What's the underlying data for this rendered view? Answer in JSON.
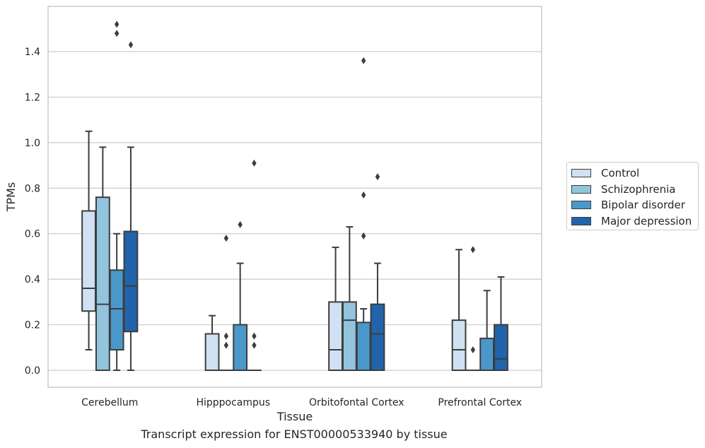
{
  "caption": "Transcript expression for ENST00000533940 by tissue",
  "chart_data": {
    "type": "box",
    "xlabel": "Tissue",
    "ylabel": "TPMs",
    "ylim": [
      -0.075,
      1.6
    ],
    "yticks": [
      "0.0",
      "0.2",
      "0.4",
      "0.6",
      "0.8",
      "1.0",
      "1.2",
      "1.4"
    ],
    "grid": true,
    "legend_position": "right",
    "categories": [
      "Cerebellum",
      "Hipppocampus",
      "Orbitofontal Cortex",
      "Prefrontal Cortex"
    ],
    "series": [
      {
        "name": "Control",
        "color": "#cfe1f2",
        "boxes": [
          {
            "low": 0.09,
            "q1": 0.26,
            "median": 0.36,
            "q3": 0.7,
            "high": 1.05,
            "outliers": []
          },
          {
            "low": 0.0,
            "q1": 0.0,
            "median": 0.0,
            "q3": 0.16,
            "high": 0.24,
            "outliers": []
          },
          {
            "low": 0.0,
            "q1": 0.0,
            "median": 0.09,
            "q3": 0.3,
            "high": 0.54,
            "outliers": []
          },
          {
            "low": 0.0,
            "q1": 0.0,
            "median": 0.09,
            "q3": 0.22,
            "high": 0.53,
            "outliers": []
          }
        ]
      },
      {
        "name": "Schizophrenia",
        "color": "#93c4de",
        "boxes": [
          {
            "low": 0.0,
            "q1": 0.0,
            "median": 0.29,
            "q3": 0.76,
            "high": 0.98,
            "outliers": []
          },
          {
            "low": 0.0,
            "q1": 0.0,
            "median": 0.0,
            "q3": 0.0,
            "high": 0.0,
            "outliers": [
              0.11,
              0.15,
              0.58
            ]
          },
          {
            "low": 0.0,
            "q1": 0.0,
            "median": 0.22,
            "q3": 0.3,
            "high": 0.63,
            "outliers": []
          },
          {
            "low": 0.0,
            "q1": 0.0,
            "median": 0.0,
            "q3": 0.0,
            "high": 0.0,
            "outliers": [
              0.09,
              0.53
            ]
          }
        ]
      },
      {
        "name": "Bipolar disorder",
        "color": "#4a98c9",
        "boxes": [
          {
            "low": 0.0,
            "q1": 0.09,
            "median": 0.27,
            "q3": 0.44,
            "high": 0.6,
            "outliers": [
              1.48,
              1.52
            ]
          },
          {
            "low": 0.0,
            "q1": 0.0,
            "median": 0.0,
            "q3": 0.2,
            "high": 0.47,
            "outliers": [
              0.64
            ]
          },
          {
            "low": 0.0,
            "q1": 0.0,
            "median": 0.0,
            "q3": 0.21,
            "high": 0.27,
            "outliers": [
              0.59,
              0.77,
              1.36
            ]
          },
          {
            "low": 0.0,
            "q1": 0.0,
            "median": 0.0,
            "q3": 0.14,
            "high": 0.35,
            "outliers": []
          }
        ]
      },
      {
        "name": "Major depression",
        "color": "#2164ab",
        "boxes": [
          {
            "low": 0.0,
            "q1": 0.17,
            "median": 0.37,
            "q3": 0.61,
            "high": 0.98,
            "outliers": [
              1.43
            ]
          },
          {
            "low": 0.0,
            "q1": 0.0,
            "median": 0.0,
            "q3": 0.0,
            "high": 0.0,
            "outliers": [
              0.11,
              0.15,
              0.91
            ]
          },
          {
            "low": 0.0,
            "q1": 0.0,
            "median": 0.16,
            "q3": 0.29,
            "high": 0.47,
            "outliers": [
              0.85
            ]
          },
          {
            "low": 0.0,
            "q1": 0.0,
            "median": 0.05,
            "q3": 0.2,
            "high": 0.41,
            "outliers": []
          }
        ]
      }
    ]
  }
}
